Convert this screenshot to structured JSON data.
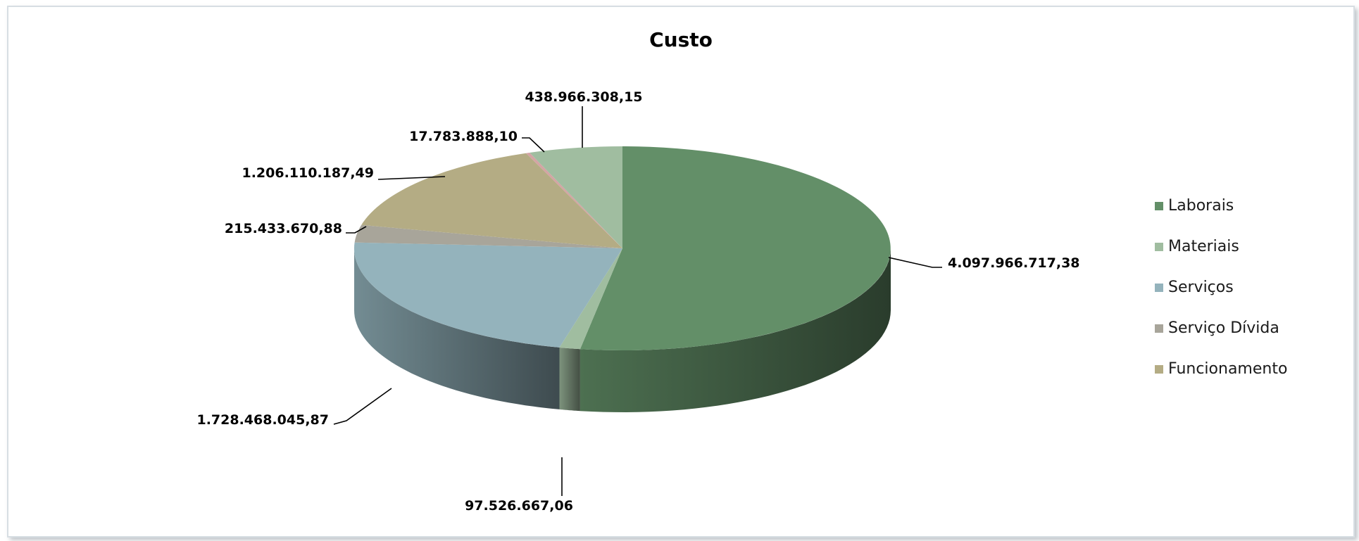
{
  "chart_data": {
    "type": "pie",
    "title": "Custo",
    "legend_position": "right",
    "slices": [
      {
        "label": "Laborais",
        "value": 4097966717.38,
        "value_label": "4.097.966.717,38",
        "color": "#638f68"
      },
      {
        "label": "Materiais",
        "value": 97526667.06,
        "value_label": "97.526.667,06",
        "color": "#a0bda0"
      },
      {
        "label": "Serviços",
        "value": 1728468045.87,
        "value_label": "1.728.468.045,87",
        "color": "#94b3bc"
      },
      {
        "label": "Serviço Dívida",
        "value": 215433670.88,
        "value_label": "215.433.670,88",
        "color": "#a8a59a"
      },
      {
        "label": "Funcionamento",
        "value": 1206110187.49,
        "value_label": "1.206.110.187,49",
        "color": "#b4ac84"
      },
      {
        "label": "",
        "value": 17783888.1,
        "value_label": "17.783.888,10",
        "color": "#d4a4a4"
      },
      {
        "label": "",
        "value": 438966308.15,
        "value_label": "438.966.308,15",
        "color": "#a0bda0"
      }
    ]
  }
}
